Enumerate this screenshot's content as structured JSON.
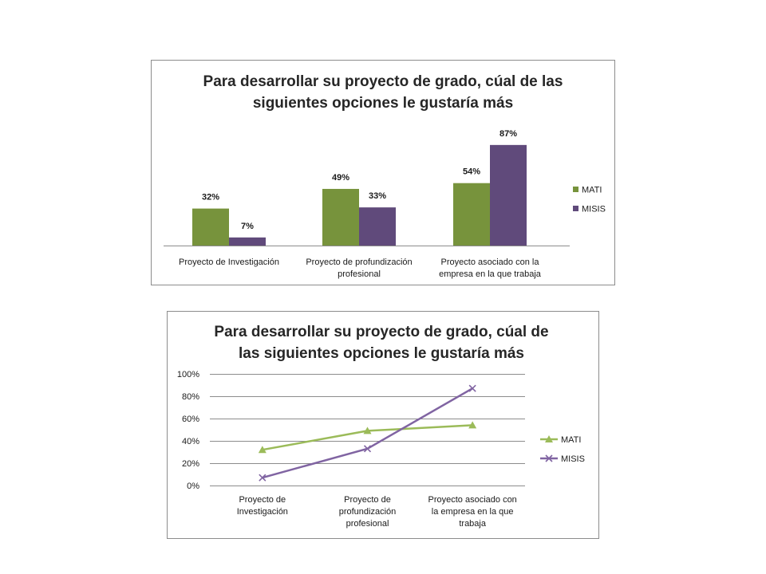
{
  "chart_data": [
    {
      "type": "bar",
      "title_lines": [
        "Para desarrollar su proyecto de grado, cúal de las",
        "siguientes opciones le gustaría más"
      ],
      "categories": [
        [
          "Proyecto de Investigación"
        ],
        [
          "Proyecto de profundización",
          "profesional"
        ],
        [
          "Proyecto asociado con la",
          "empresa en la que trabaja"
        ]
      ],
      "series": [
        {
          "name": "MATI",
          "values": [
            32,
            49,
            54
          ],
          "labels": [
            "32%",
            "49%",
            "54%"
          ],
          "color": "#77933c"
        },
        {
          "name": "MISIS",
          "values": [
            7,
            33,
            87
          ],
          "labels": [
            "7%",
            "33%",
            "87%"
          ],
          "color": "#604a7b"
        }
      ],
      "ylim": [
        0,
        100
      ],
      "legend_position": "right"
    },
    {
      "type": "line",
      "title_lines": [
        "Para desarrollar su proyecto de grado, cúal de",
        "las siguientes opciones le gustaría más"
      ],
      "categories": [
        [
          "Proyecto de",
          "Investigación"
        ],
        [
          "Proyecto de",
          "profundización",
          "profesional"
        ],
        [
          "Proyecto asociado con",
          "la empresa en la que",
          "trabaja"
        ]
      ],
      "series": [
        {
          "name": "MATI",
          "values": [
            32,
            49,
            54
          ],
          "color": "#9bbb59",
          "marker": "triangle"
        },
        {
          "name": "MISIS",
          "values": [
            7,
            33,
            87
          ],
          "color": "#8064a2",
          "marker": "x"
        }
      ],
      "yticks": [
        "0%",
        "20%",
        "40%",
        "60%",
        "80%",
        "100%"
      ],
      "ylim": [
        0,
        100
      ],
      "grid": true,
      "legend_position": "right"
    }
  ]
}
